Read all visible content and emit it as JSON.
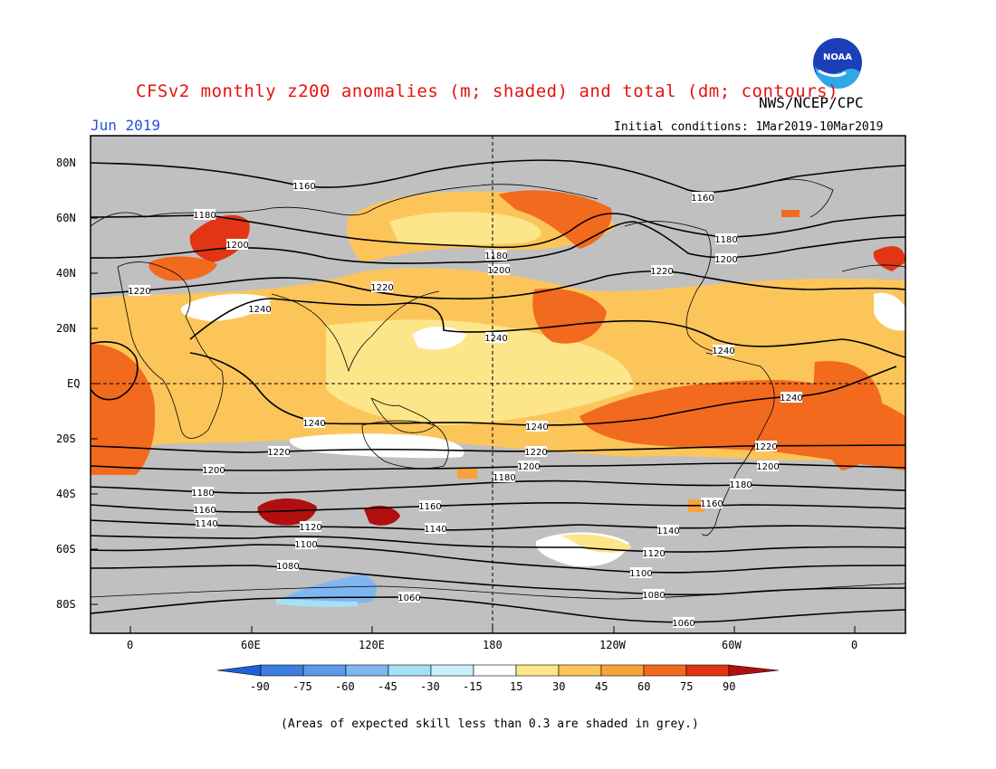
{
  "header": {
    "title": "CFSv2 monthly z200 anomalies (m; shaded) and total (dm; contours)",
    "agency": "NWS/NCEP/CPC",
    "month": "Jun 2019",
    "initial_conditions": "Initial conditions: 1Mar2019-10Mar2019",
    "logo_text": "NOAA"
  },
  "axes": {
    "lat_labels": [
      "80N",
      "60N",
      "40N",
      "20N",
      "EQ",
      "20S",
      "40S",
      "60S",
      "80S"
    ],
    "lon_labels": [
      "0",
      "60E",
      "120E",
      "180",
      "120W",
      "60W",
      "0"
    ]
  },
  "contours": {
    "labels": [
      "1160",
      "1180",
      "1200",
      "1220",
      "1240",
      "1180",
      "1200",
      "1220",
      "1240",
      "1160",
      "1180",
      "1200",
      "1220",
      "1240",
      "1240",
      "1240",
      "1240",
      "1220",
      "1200",
      "1180",
      "1160",
      "1140",
      "1120",
      "1100",
      "1080",
      "1060",
      "1220",
      "1200",
      "1180",
      "1160",
      "1140",
      "1120",
      "1100",
      "1080",
      "1060",
      "1220",
      "1200",
      "1180",
      "1160",
      "1140",
      "1120",
      "1100",
      "1080",
      "1060"
    ]
  },
  "colorbar": {
    "labels": [
      "-90",
      "-75",
      "-60",
      "-45",
      "-30",
      "-15",
      "15",
      "30",
      "45",
      "60",
      "75",
      "90"
    ],
    "colors": [
      "#1f5fd6",
      "#3b7fe0",
      "#5b9ae8",
      "#7fb6f0",
      "#a6e0f6",
      "#ffffff",
      "#fde68a",
      "#fcc55a",
      "#f9a23a",
      "#f26a1e",
      "#e33515",
      "#b10f0f"
    ]
  },
  "colors": {
    "grey_mask": "#c0c0c0",
    "title_red": "#e8120c",
    "date_blue": "#2a4fd6"
  },
  "note": "(Areas of expected skill less than 0.3 are shaded in grey.)"
}
